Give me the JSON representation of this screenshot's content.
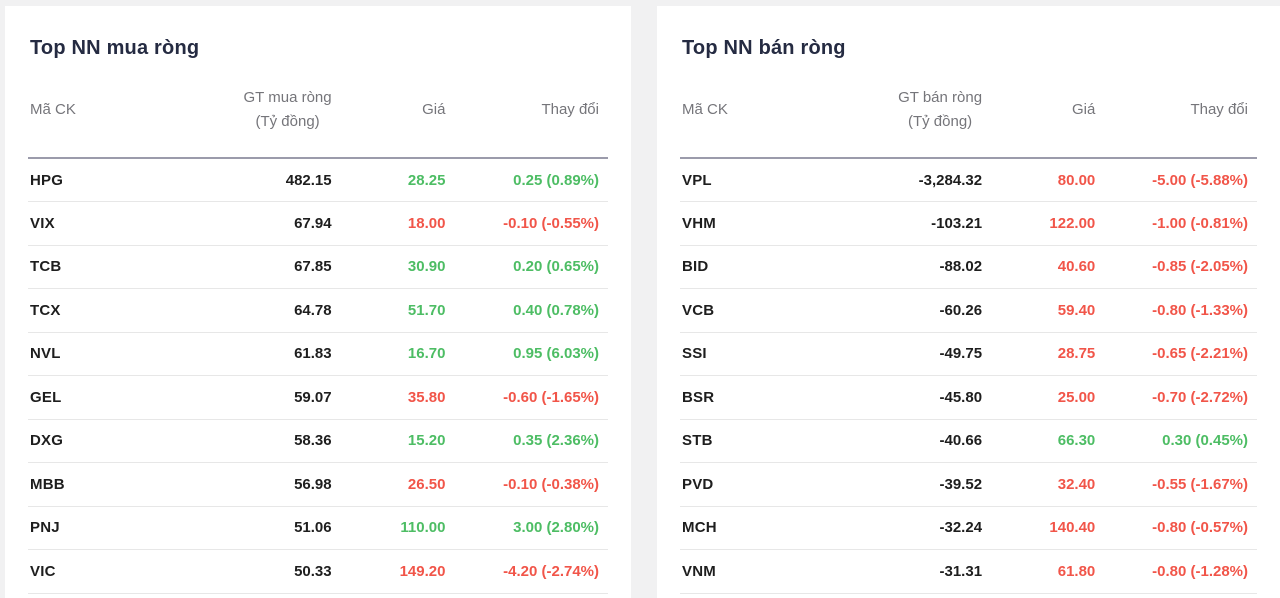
{
  "colors": {
    "page_background": "#f1f1f2",
    "card_background": "#ffffff",
    "title_text": "#252b42",
    "header_text": "#75757a",
    "body_text": "#1e1e1e",
    "up": "#4dbd64",
    "down": "#f15549",
    "header_rule": "#9b9bab",
    "row_rule": "#e7e7e7"
  },
  "panels": [
    {
      "title": "Top NN mua ròng",
      "columns": {
        "symbol": "Mã CK",
        "value_line1": "GT mua ròng",
        "value_line2": "(Tỷ đồng)",
        "price": "Giá",
        "change": "Thay đổi"
      },
      "rows": [
        {
          "symbol": "HPG",
          "value": "482.15",
          "price": "28.25",
          "change": "0.25 (0.89%)",
          "direction": "up"
        },
        {
          "symbol": "VIX",
          "value": "67.94",
          "price": "18.00",
          "change": "-0.10 (-0.55%)",
          "direction": "down"
        },
        {
          "symbol": "TCB",
          "value": "67.85",
          "price": "30.90",
          "change": "0.20 (0.65%)",
          "direction": "up"
        },
        {
          "symbol": "TCX",
          "value": "64.78",
          "price": "51.70",
          "change": "0.40 (0.78%)",
          "direction": "up"
        },
        {
          "symbol": "NVL",
          "value": "61.83",
          "price": "16.70",
          "change": "0.95 (6.03%)",
          "direction": "up"
        },
        {
          "symbol": "GEL",
          "value": "59.07",
          "price": "35.80",
          "change": "-0.60 (-1.65%)",
          "direction": "down"
        },
        {
          "symbol": "DXG",
          "value": "58.36",
          "price": "15.20",
          "change": "0.35 (2.36%)",
          "direction": "up"
        },
        {
          "symbol": "MBB",
          "value": "56.98",
          "price": "26.50",
          "change": "-0.10 (-0.38%)",
          "direction": "down"
        },
        {
          "symbol": "PNJ",
          "value": "51.06",
          "price": "110.00",
          "change": "3.00 (2.80%)",
          "direction": "up"
        },
        {
          "symbol": "VIC",
          "value": "50.33",
          "price": "149.20",
          "change": "-4.20 (-2.74%)",
          "direction": "down"
        }
      ]
    },
    {
      "title": "Top NN bán ròng",
      "columns": {
        "symbol": "Mã CK",
        "value_line1": "GT bán ròng",
        "value_line2": "(Tỷ đồng)",
        "price": "Giá",
        "change": "Thay đổi"
      },
      "rows": [
        {
          "symbol": "VPL",
          "value": "-3,284.32",
          "price": "80.00",
          "change": "-5.00 (-5.88%)",
          "direction": "down"
        },
        {
          "symbol": "VHM",
          "value": "-103.21",
          "price": "122.00",
          "change": "-1.00 (-0.81%)",
          "direction": "down"
        },
        {
          "symbol": "BID",
          "value": "-88.02",
          "price": "40.60",
          "change": "-0.85 (-2.05%)",
          "direction": "down"
        },
        {
          "symbol": "VCB",
          "value": "-60.26",
          "price": "59.40",
          "change": "-0.80 (-1.33%)",
          "direction": "down"
        },
        {
          "symbol": "SSI",
          "value": "-49.75",
          "price": "28.75",
          "change": "-0.65 (-2.21%)",
          "direction": "down"
        },
        {
          "symbol": "BSR",
          "value": "-45.80",
          "price": "25.00",
          "change": "-0.70 (-2.72%)",
          "direction": "down"
        },
        {
          "symbol": "STB",
          "value": "-40.66",
          "price": "66.30",
          "change": "0.30 (0.45%)",
          "direction": "up"
        },
        {
          "symbol": "PVD",
          "value": "-39.52",
          "price": "32.40",
          "change": "-0.55 (-1.67%)",
          "direction": "down"
        },
        {
          "symbol": "MCH",
          "value": "-32.24",
          "price": "140.40",
          "change": "-0.80 (-0.57%)",
          "direction": "down"
        },
        {
          "symbol": "VNM",
          "value": "-31.31",
          "price": "61.80",
          "change": "-0.80 (-1.28%)",
          "direction": "down"
        }
      ]
    }
  ]
}
